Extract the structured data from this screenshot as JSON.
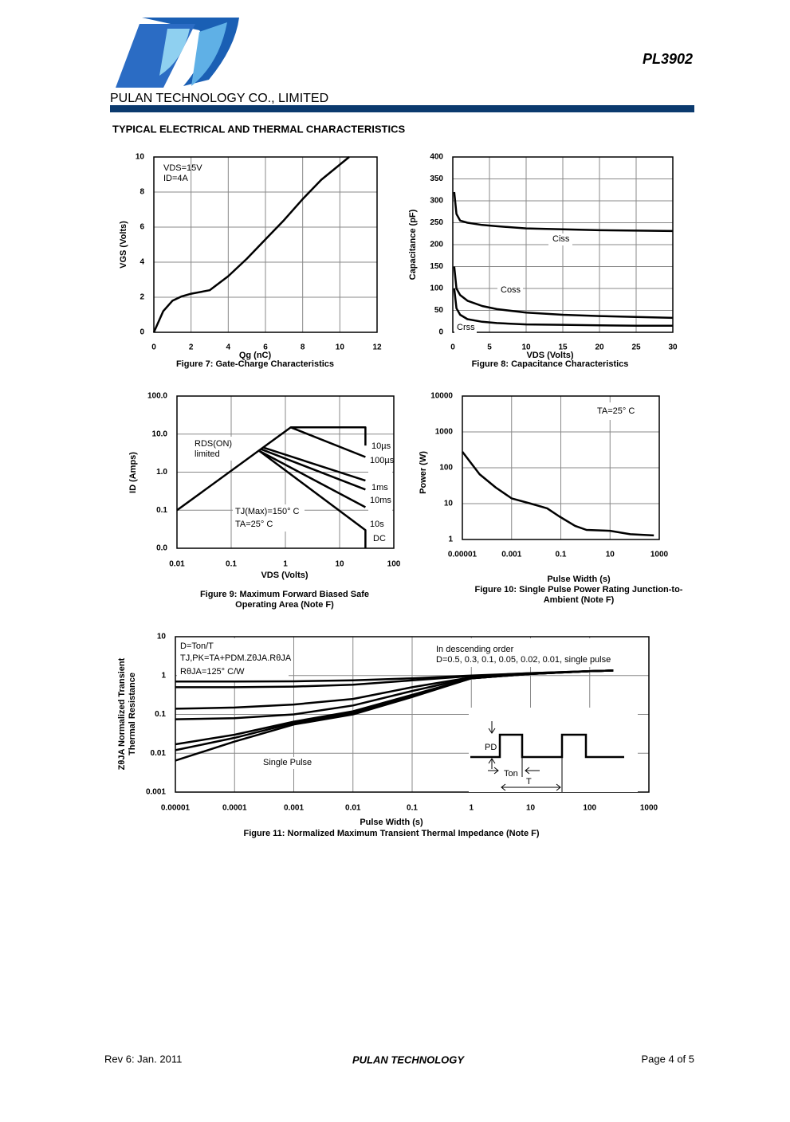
{
  "header": {
    "part_number": "PL3902",
    "company": "PULAN TECHNOLOGY CO., LIMITED",
    "section_title": "TYPICAL ELECTRICAL AND THERMAL CHARACTERISTICS"
  },
  "footer": {
    "revision": "Rev 6: Jan. 2011",
    "company": "PULAN TECHNOLOGY",
    "page": "Page 4 of 5"
  },
  "chart_data": [
    {
      "type": "line",
      "title": [
        "Figure 7: Gate-Charge Characteristics"
      ],
      "x_label": "Qg (nC)",
      "y_label": [
        "VGS (Volts)"
      ],
      "x": [
        0,
        0.5,
        1,
        1.5,
        2,
        3,
        4,
        5,
        6,
        7,
        8,
        9,
        10.5
      ],
      "series": [
        {
          "color": "#000000",
          "values": [
            0,
            1.2,
            1.8,
            2.05,
            2.2,
            2.4,
            3.2,
            4.2,
            5.3,
            6.4,
            7.6,
            8.7,
            10
          ]
        }
      ],
      "xlim": [
        0,
        12
      ],
      "ylim": [
        0,
        10
      ],
      "xticks": [
        0,
        2,
        4,
        6,
        8,
        10,
        12
      ],
      "yticks": [
        0,
        2,
        4,
        6,
        8,
        10
      ],
      "grid": true,
      "log_x": false,
      "log_y": false,
      "annotations": [
        "VDS=15V",
        "ID=4A"
      ]
    },
    {
      "type": "line",
      "title": [
        "Figure 8: Capacitance Characteristics"
      ],
      "x_label": "VDS (Volts)",
      "y_label": [
        "Capacitance (pF)"
      ],
      "x": [
        0.2,
        0.5,
        1,
        2,
        4,
        6,
        10,
        15,
        20,
        25,
        30
      ],
      "series": [
        {
          "name": "Ciss",
          "color": "#000000",
          "values": [
            320,
            270,
            255,
            250,
            245,
            242,
            237,
            235,
            233,
            232,
            231
          ]
        },
        {
          "name": "Coss",
          "color": "#000000",
          "values": [
            150,
            100,
            85,
            72,
            60,
            53,
            45,
            40,
            37,
            35,
            33
          ]
        },
        {
          "name": "Crss",
          "color": "#000000",
          "values": [
            100,
            55,
            40,
            30,
            24,
            21,
            18,
            17,
            16,
            15,
            15
          ]
        }
      ],
      "xlim": [
        0,
        30
      ],
      "ylim": [
        0,
        400
      ],
      "xticks": [
        0,
        5,
        10,
        15,
        20,
        25,
        30
      ],
      "yticks": [
        0,
        50,
        100,
        150,
        200,
        250,
        300,
        350,
        400
      ],
      "grid": true,
      "log_x": false,
      "log_y": false,
      "annotations": []
    },
    {
      "type": "line",
      "title": [
        "Figure 9: Maximum Forward Biased Safe",
        "Operating Area (Note F)"
      ],
      "x_label": "VDS (Volts)",
      "y_label": [
        "ID (Amps)"
      ],
      "series": [
        {
          "name": "10µs",
          "color": "#000000",
          "x": [
            0.01,
            1.26,
            30,
            30
          ],
          "values": [
            0.1,
            15,
            15,
            5
          ]
        },
        {
          "name": "100µs",
          "color": "#000000",
          "x": [
            1.26,
            30
          ],
          "values": [
            15,
            2.5
          ]
        },
        {
          "name": "1ms",
          "color": "#000000",
          "x": [
            0.4,
            30
          ],
          "values": [
            4.4,
            0.6
          ]
        },
        {
          "name": "10ms",
          "color": "#000000",
          "x": [
            0.36,
            30
          ],
          "values": [
            4.0,
            0.35
          ]
        },
        {
          "name": "10s",
          "color": "#000000",
          "x": [
            0.33,
            30
          ],
          "values": [
            3.6,
            0.12
          ]
        },
        {
          "name": "DC",
          "color": "#000000",
          "x": [
            0.33,
            30,
            30
          ],
          "values": [
            3.6,
            0.03,
            0.01
          ]
        }
      ],
      "xlim": [
        0.01,
        100
      ],
      "ylim": [
        0.01,
        100
      ],
      "xticks": [
        0.01,
        0.1,
        1,
        10,
        100
      ],
      "yticks": [
        {
          "value": 0.01,
          "label": "0.0"
        },
        0.1,
        {
          "value": 1,
          "label": "1.0"
        },
        {
          "value": 10,
          "label": "10.0"
        },
        {
          "value": 100,
          "label": "100.0"
        }
      ],
      "grid": true,
      "log_x": true,
      "log_y": true,
      "annotations": [
        "RDS(ON)",
        "limited",
        "TJ(Max)=150° C",
        "TA=25° C"
      ]
    },
    {
      "type": "line",
      "title": [
        "Figure 10: Single Pulse Power Rating Junction-to-",
        "Ambient (Note F)"
      ],
      "x_label": "Pulse Width (s)",
      "y_label": [
        "Power (W)"
      ],
      "x": [
        1e-05,
        5e-05,
        0.00023,
        0.001,
        0.006,
        0.028,
        0.086,
        0.38,
        1.1,
        10,
        66,
        600
      ],
      "series": [
        {
          "color": "#000000",
          "values": [
            280,
            66,
            28,
            14,
            10,
            7.4,
            4.4,
            2.4,
            1.85,
            1.75,
            1.4,
            1.3
          ]
        }
      ],
      "xlim": [
        1e-05,
        1000
      ],
      "ylim": [
        1,
        10000
      ],
      "xticks": [
        1e-05,
        0.001,
        0.1,
        10,
        1000
      ],
      "yticks": [
        1,
        10,
        100,
        1000,
        10000
      ],
      "grid": true,
      "log_x": true,
      "log_y": true,
      "annotations": [
        "TA=25° C"
      ]
    },
    {
      "type": "line",
      "title": [
        "Figure 11: Normalized Maximum Transient Thermal Impedance (Note F)"
      ],
      "x_label": "Pulse Width (s)",
      "y_label": [
        "ZθJA Normalized Transient",
        "Thermal Resistance"
      ],
      "x": [
        1e-05,
        0.0001,
        0.001,
        0.01,
        0.1,
        1,
        10,
        100,
        250
      ],
      "series": [
        {
          "color": "#000000",
          "values": [
            0.7,
            0.7,
            0.71,
            0.75,
            0.85,
            1.0,
            1.15,
            1.3,
            1.35
          ]
        },
        {
          "color": "#000000",
          "values": [
            0.5,
            0.5,
            0.52,
            0.58,
            0.75,
            0.97,
            1.15,
            1.3,
            1.35
          ]
        },
        {
          "color": "#000000",
          "values": [
            0.14,
            0.15,
            0.18,
            0.25,
            0.5,
            0.9,
            1.12,
            1.3,
            1.35
          ]
        },
        {
          "color": "#000000",
          "values": [
            0.075,
            0.08,
            0.1,
            0.17,
            0.4,
            0.88,
            1.1,
            1.3,
            1.35
          ]
        },
        {
          "color": "#000000",
          "values": [
            0.017,
            0.03,
            0.065,
            0.12,
            0.32,
            0.85,
            1.1,
            1.3,
            1.35
          ]
        },
        {
          "color": "#000000",
          "values": [
            0.012,
            0.025,
            0.06,
            0.11,
            0.3,
            0.85,
            1.1,
            1.3,
            1.35
          ]
        },
        {
          "name": "Single Pulse",
          "color": "#000000",
          "values": [
            0.0065,
            0.02,
            0.055,
            0.1,
            0.28,
            0.85,
            1.1,
            1.3,
            1.35
          ]
        }
      ],
      "xlim": [
        1e-05,
        1000
      ],
      "ylim": [
        0.001,
        10
      ],
      "xticks": [
        1e-05,
        0.0001,
        0.001,
        0.01,
        0.1,
        1,
        10,
        100,
        1000
      ],
      "yticks": [
        0.001,
        0.01,
        0.1,
        1,
        10
      ],
      "grid": true,
      "log_x": true,
      "log_y": true,
      "annotations": [
        "D=Ton/T",
        "TJ,PK=TA+PDM.ZθJA.RθJA",
        "RθJA=125° C/W",
        "In descending order",
        "D=0.5, 0.3, 0.1, 0.05, 0.02, 0.01, single pulse",
        "PD",
        "Ton",
        "T"
      ]
    }
  ]
}
